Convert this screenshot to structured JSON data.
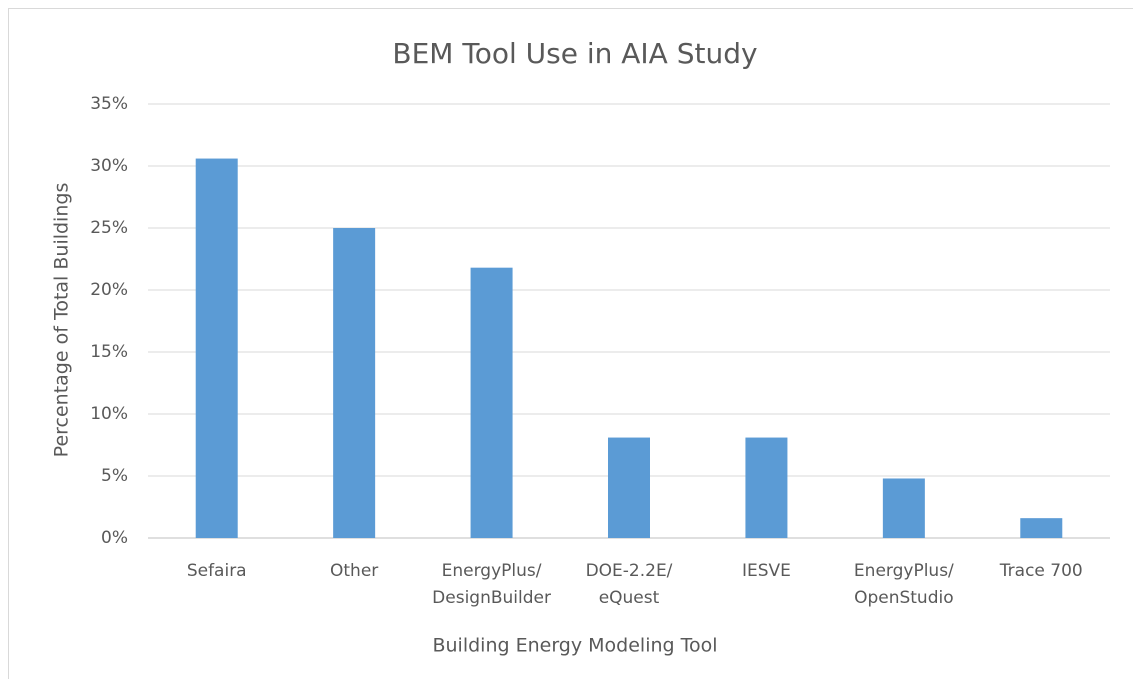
{
  "chart_data": {
    "type": "bar",
    "title": "BEM Tool Use in AIA Study",
    "x_label": "Building Energy Modeling Tool",
    "y_label": "Percentage of Total Buildings",
    "categories": [
      [
        "Sefaira"
      ],
      [
        "Other"
      ],
      [
        "EnergyPlus/",
        "DesignBuilder"
      ],
      [
        "DOE-2.2E/",
        "eQuest"
      ],
      [
        "IESVE"
      ],
      [
        "EnergyPlus/",
        "OpenStudio"
      ],
      [
        "Trace 700"
      ]
    ],
    "values": [
      30.6,
      25,
      21.8,
      8.1,
      8.1,
      4.8,
      1.6
    ],
    "color": "#5b9bd5",
    "ylim": [
      0,
      35
    ],
    "yticks": [
      {
        "value": 0,
        "label": "0%"
      },
      {
        "value": 5,
        "label": "5%"
      },
      {
        "value": 10,
        "label": "10%"
      },
      {
        "value": 15,
        "label": "15%"
      },
      {
        "value": 20,
        "label": "20%"
      },
      {
        "value": 25,
        "label": "25%"
      },
      {
        "value": 30,
        "label": "30%"
      },
      {
        "value": 35,
        "label": "35%"
      }
    ],
    "grid": true
  }
}
